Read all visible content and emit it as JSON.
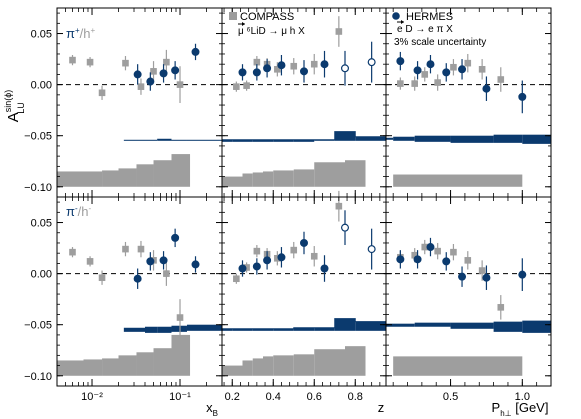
{
  "figure": {
    "ylabel_main": "A",
    "ylabel_sup": "sin(ϕ)",
    "ylabel_sub": "LU",
    "xlabels": [
      "x",
      "z",
      "P"
    ],
    "xlabel_subs": [
      "B",
      "",
      "h⊥"
    ],
    "xlabel_suffix": [
      "",
      "",
      " [GeV]"
    ],
    "ylim": [
      -0.11,
      0.075
    ],
    "yticks": [
      0.05,
      0.0,
      -0.05,
      -0.1
    ],
    "ytick_labels": [
      "0.05",
      "0.00",
      "−0.05",
      "−0.10"
    ]
  },
  "colors": {
    "compass": "#9e9e9e",
    "hermes": "#0b3a6e",
    "band": "#9e9e9e"
  },
  "legend": {
    "compass_title": "COMPASS",
    "compass_reaction": "μ ⁶LiD → μ h X",
    "hermes_title": "HERMES",
    "hermes_reaction": "e D → e π X",
    "hermes_note": "3% scale uncertainty"
  },
  "rows": [
    {
      "label_main": "π",
      "label_sup": "+",
      "label_sep": "/h",
      "label_sup2": "+"
    },
    {
      "label_main": "π",
      "label_sup": "-",
      "label_sep": "/h",
      "label_sup2": "-"
    }
  ],
  "chart_data": [
    {
      "type": "scatter",
      "panel": "π+/h+ vs x_B",
      "xscale": "log",
      "xlim": [
        0.004,
        0.3
      ],
      "xticks": [
        0.01,
        0.1
      ],
      "xtick_labels": [
        "10⁻²",
        "10⁻¹"
      ],
      "ylim": [
        -0.11,
        0.075
      ],
      "series": [
        {
          "name": "COMPASS",
          "x": [
            0.006,
            0.0095,
            0.013,
            0.024,
            0.036,
            0.05,
            0.07,
            0.1
          ],
          "y": [
            0.024,
            0.022,
            -0.008,
            0.021,
            -0.002,
            0.013,
            0.022,
            0.0
          ],
          "yerr": [
            0.005,
            0.005,
            0.007,
            0.007,
            0.008,
            0.01,
            0.012,
            0.018
          ]
        },
        {
          "name": "HERMES",
          "x": [
            0.033,
            0.046,
            0.065,
            0.088,
            0.15
          ],
          "y": [
            0.01,
            0.003,
            0.011,
            0.014,
            0.032
          ],
          "yerr": [
            0.01,
            0.009,
            0.009,
            0.009,
            0.008
          ]
        }
      ],
      "hermes_band": {
        "edges": [
          0.023,
          0.04,
          0.055,
          0.08,
          0.12,
          0.3
        ],
        "lo": [
          -0.055,
          -0.055,
          -0.055,
          -0.055,
          -0.055
        ],
        "hi": [
          -0.054,
          -0.054,
          -0.053,
          -0.054,
          -0.054
        ]
      },
      "compass_band": {
        "edges": [
          0.004,
          0.008,
          0.013,
          0.02,
          0.032,
          0.05,
          0.08,
          0.13
        ],
        "lo": [
          -0.1,
          -0.1,
          -0.1,
          -0.1,
          -0.1,
          -0.1,
          -0.1
        ],
        "hi": [
          -0.085,
          -0.085,
          -0.084,
          -0.082,
          -0.078,
          -0.074,
          -0.068
        ]
      }
    },
    {
      "type": "scatter",
      "panel": "π+/h+ vs z",
      "xscale": "linear",
      "xlim": [
        0.15,
        0.95
      ],
      "xticks": [
        0.2,
        0.4,
        0.6,
        0.8
      ],
      "xtick_labels": [
        "0.2",
        "0.4",
        "0.6",
        "0.8"
      ],
      "ylim": [
        -0.11,
        0.075
      ],
      "series": [
        {
          "name": "COMPASS",
          "x": [
            0.22,
            0.27,
            0.32,
            0.37,
            0.42,
            0.5,
            0.6,
            0.72
          ],
          "y": [
            -0.002,
            -0.001,
            0.022,
            0.02,
            0.015,
            0.018,
            0.02,
            0.052
          ],
          "yerr": [
            0.005,
            0.005,
            0.006,
            0.006,
            0.007,
            0.008,
            0.01,
            0.015
          ]
        },
        {
          "name": "HERMES",
          "x": [
            0.25,
            0.32,
            0.37,
            0.44,
            0.55,
            0.65
          ],
          "y": [
            0.012,
            0.012,
            0.016,
            0.019,
            0.013,
            0.02
          ],
          "yerr": [
            0.008,
            0.008,
            0.009,
            0.01,
            0.011,
            0.013
          ]
        },
        {
          "name": "HERMES (open)",
          "x": [
            0.75,
            0.88
          ],
          "y": [
            0.016,
            0.022
          ],
          "yerr": [
            0.017,
            0.02
          ]
        }
      ],
      "hermes_band": {
        "edges": [
          0.15,
          0.2,
          0.3,
          0.4,
          0.5,
          0.6,
          0.7,
          0.8,
          0.95
        ],
        "lo": [
          -0.056,
          -0.056,
          -0.056,
          -0.056,
          -0.056,
          -0.055,
          -0.055,
          -0.055
        ],
        "hi": [
          -0.054,
          -0.054,
          -0.054,
          -0.054,
          -0.054,
          -0.054,
          -0.046,
          -0.051
        ]
      },
      "compass_band": {
        "edges": [
          0.15,
          0.25,
          0.3,
          0.35,
          0.4,
          0.5,
          0.6,
          0.75,
          0.85
        ],
        "lo": [
          -0.1,
          -0.1,
          -0.1,
          -0.1,
          -0.1,
          -0.1,
          -0.1,
          -0.1
        ],
        "hi": [
          -0.09,
          -0.087,
          -0.086,
          -0.085,
          -0.084,
          -0.083,
          -0.076,
          -0.074
        ]
      }
    },
    {
      "type": "scatter",
      "panel": "π+/h+ vs P_h⊥",
      "xscale": "linear",
      "xlim": [
        0.05,
        1.2
      ],
      "xticks": [
        0.5,
        1.0
      ],
      "xtick_labels": [
        "0.5",
        "1.0"
      ],
      "ylim": [
        -0.11,
        0.075
      ],
      "series": [
        {
          "name": "COMPASS",
          "x": [
            0.15,
            0.25,
            0.32,
            0.41,
            0.52,
            0.62,
            0.72,
            0.85
          ],
          "y": [
            0.001,
            0.001,
            0.01,
            0.002,
            0.017,
            0.021,
            0.015,
            0.005
          ],
          "yerr": [
            0.006,
            0.007,
            0.007,
            0.008,
            0.008,
            0.009,
            0.01,
            0.012
          ]
        },
        {
          "name": "HERMES",
          "x": [
            0.15,
            0.27,
            0.36,
            0.47,
            0.58,
            0.75,
            1.0
          ],
          "y": [
            0.023,
            0.014,
            0.02,
            0.012,
            0.015,
            -0.004,
            -0.012
          ],
          "yerr": [
            0.009,
            0.009,
            0.009,
            0.009,
            0.01,
            0.012,
            0.016
          ]
        }
      ],
      "hermes_band": {
        "edges": [
          0.05,
          0.1,
          0.25,
          0.5,
          0.8,
          1.0,
          1.2
        ],
        "lo": [
          -0.054,
          -0.055,
          -0.056,
          -0.057,
          -0.057,
          -0.058
        ],
        "hi": [
          -0.052,
          -0.051,
          -0.05,
          -0.05,
          -0.049,
          -0.049
        ]
      },
      "compass_band": {
        "edges": [
          0.1,
          1.0
        ],
        "lo": [
          -0.1
        ],
        "hi": [
          -0.088
        ]
      }
    },
    {
      "type": "scatter",
      "panel": "π-/h- vs x_B",
      "xscale": "log",
      "xlim": [
        0.004,
        0.3
      ],
      "xticks": [
        0.01,
        0.1
      ],
      "xtick_labels": [
        "10⁻²",
        "10⁻¹"
      ],
      "ylim": [
        -0.11,
        0.075
      ],
      "series": [
        {
          "name": "COMPASS",
          "x": [
            0.006,
            0.0095,
            0.013,
            0.024,
            0.036,
            0.05,
            0.07,
            0.1
          ],
          "y": [
            0.021,
            0.012,
            -0.004,
            0.024,
            0.024,
            0.013,
            0.0,
            -0.043
          ],
          "yerr": [
            0.005,
            0.005,
            0.007,
            0.007,
            0.008,
            0.01,
            0.012,
            0.018
          ]
        },
        {
          "name": "HERMES",
          "x": [
            0.033,
            0.046,
            0.065,
            0.088,
            0.15
          ],
          "y": [
            -0.005,
            0.012,
            0.013,
            0.035,
            0.009
          ],
          "yerr": [
            0.01,
            0.009,
            0.009,
            0.009,
            0.008
          ]
        }
      ],
      "hermes_band": {
        "edges": [
          0.023,
          0.04,
          0.055,
          0.08,
          0.12,
          0.3
        ],
        "lo": [
          -0.057,
          -0.058,
          -0.058,
          -0.057,
          -0.056
        ],
        "hi": [
          -0.053,
          -0.052,
          -0.052,
          -0.051,
          -0.05
        ]
      },
      "compass_band": {
        "edges": [
          0.004,
          0.008,
          0.013,
          0.02,
          0.032,
          0.05,
          0.08,
          0.13
        ],
        "lo": [
          -0.1,
          -0.1,
          -0.1,
          -0.1,
          -0.1,
          -0.1,
          -0.1
        ],
        "hi": [
          -0.085,
          -0.084,
          -0.083,
          -0.08,
          -0.077,
          -0.073,
          -0.06
        ]
      }
    },
    {
      "type": "scatter",
      "panel": "π-/h- vs z",
      "xscale": "linear",
      "xlim": [
        0.15,
        0.95
      ],
      "xticks": [
        0.2,
        0.4,
        0.6,
        0.8
      ],
      "xtick_labels": [
        "0.2",
        "0.4",
        "0.6",
        "0.8"
      ],
      "ylim": [
        -0.11,
        0.075
      ],
      "series": [
        {
          "name": "COMPASS",
          "x": [
            0.22,
            0.27,
            0.32,
            0.37,
            0.42,
            0.5,
            0.6,
            0.72
          ],
          "y": [
            -0.005,
            0.006,
            0.022,
            0.019,
            0.015,
            0.023,
            0.017,
            0.066
          ],
          "yerr": [
            0.005,
            0.005,
            0.006,
            0.006,
            0.007,
            0.008,
            0.01,
            0.015
          ]
        },
        {
          "name": "HERMES",
          "x": [
            0.25,
            0.32,
            0.37,
            0.44,
            0.55,
            0.65
          ],
          "y": [
            0.005,
            0.007,
            0.013,
            0.016,
            0.03,
            0.005
          ],
          "yerr": [
            0.008,
            0.008,
            0.009,
            0.01,
            0.011,
            0.013
          ]
        },
        {
          "name": "HERMES (open)",
          "x": [
            0.75,
            0.88
          ],
          "y": [
            0.045,
            0.024
          ],
          "yerr": [
            0.017,
            0.02
          ]
        }
      ],
      "hermes_band": {
        "edges": [
          0.15,
          0.2,
          0.3,
          0.4,
          0.5,
          0.6,
          0.7,
          0.8,
          0.95
        ],
        "lo": [
          -0.056,
          -0.056,
          -0.056,
          -0.056,
          -0.056,
          -0.056,
          -0.056,
          -0.056
        ],
        "hi": [
          -0.054,
          -0.054,
          -0.054,
          -0.054,
          -0.053,
          -0.053,
          -0.044,
          -0.047
        ]
      },
      "compass_band": {
        "edges": [
          0.15,
          0.25,
          0.3,
          0.35,
          0.4,
          0.5,
          0.6,
          0.75,
          0.85
        ],
        "lo": [
          -0.1,
          -0.1,
          -0.1,
          -0.1,
          -0.1,
          -0.1,
          -0.1,
          -0.1
        ],
        "hi": [
          -0.09,
          -0.085,
          -0.083,
          -0.081,
          -0.08,
          -0.079,
          -0.074,
          -0.071
        ]
      }
    },
    {
      "type": "scatter",
      "panel": "π-/h- vs P_h⊥",
      "xscale": "linear",
      "xlim": [
        0.05,
        1.2
      ],
      "xticks": [
        0.5,
        1.0
      ],
      "xtick_labels": [
        "0.5",
        "1.0"
      ],
      "ylim": [
        -0.11,
        0.075
      ],
      "series": [
        {
          "name": "COMPASS",
          "x": [
            0.15,
            0.25,
            0.32,
            0.41,
            0.52,
            0.62,
            0.72,
            0.85
          ],
          "y": [
            0.016,
            0.018,
            0.026,
            0.022,
            0.021,
            0.013,
            0.003,
            -0.033
          ],
          "yerr": [
            0.006,
            0.007,
            0.007,
            0.008,
            0.008,
            0.009,
            0.01,
            0.012
          ]
        },
        {
          "name": "HERMES",
          "x": [
            0.15,
            0.27,
            0.36,
            0.47,
            0.58,
            0.75,
            1.0
          ],
          "y": [
            0.014,
            0.014,
            0.026,
            0.012,
            -0.003,
            -0.004,
            -0.001
          ],
          "yerr": [
            0.009,
            0.009,
            0.009,
            0.009,
            0.01,
            0.012,
            0.016
          ]
        }
      ],
      "hermes_band": {
        "edges": [
          0.05,
          0.25,
          0.5,
          0.8,
          1.0,
          1.2
        ],
        "lo": [
          -0.052,
          -0.052,
          -0.054,
          -0.057,
          -0.058
        ],
        "hi": [
          -0.049,
          -0.048,
          -0.048,
          -0.047,
          -0.046
        ]
      },
      "compass_band": {
        "edges": [
          0.1,
          1.0
        ],
        "lo": [
          -0.1
        ],
        "hi": [
          -0.081
        ]
      }
    }
  ]
}
